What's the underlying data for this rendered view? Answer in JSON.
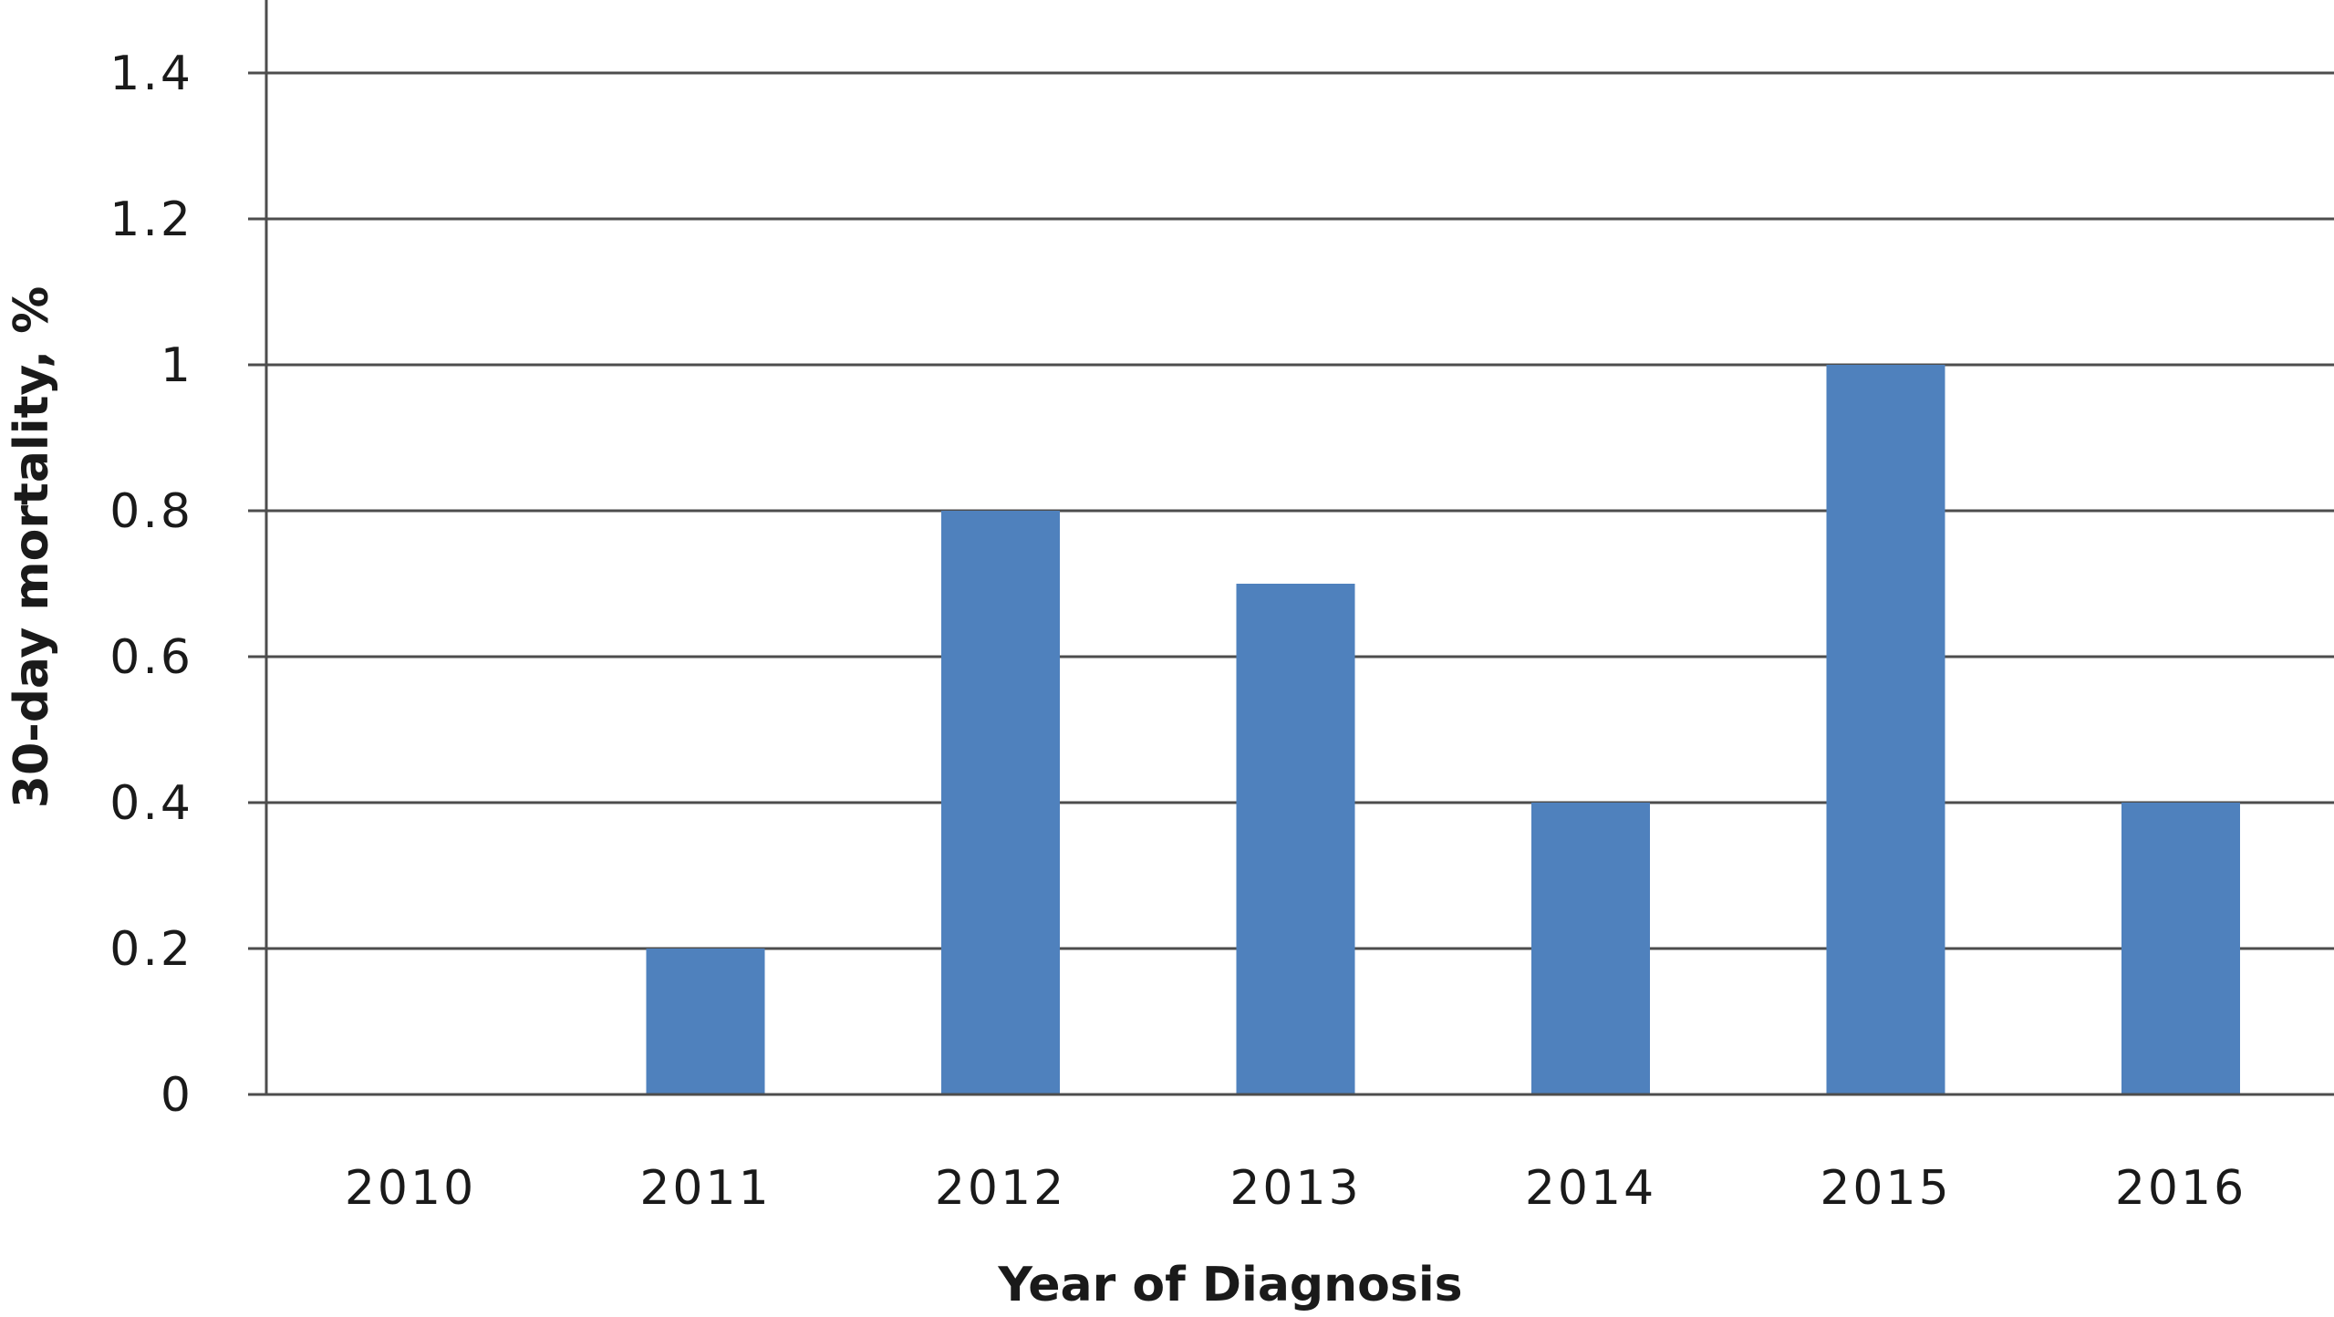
{
  "chart_data": {
    "type": "bar",
    "title": "",
    "xlabel": "Year of Diagnosis",
    "ylabel": "30-day mortality, %",
    "categories": [
      "2010",
      "2011",
      "2012",
      "2013",
      "2014",
      "2015",
      "2016"
    ],
    "values": [
      0,
      0.2,
      0.8,
      0.7,
      0.4,
      1.0,
      0.4
    ],
    "ylim": [
      0,
      1.4
    ],
    "yticks": [
      "0",
      "0.2",
      "0.4",
      "0.6",
      "0.8",
      "1",
      "1.2",
      "1.4"
    ],
    "grid": true,
    "legend": "none",
    "bar_color": "#4F81BD",
    "grid_color": "#4d4d4d"
  }
}
